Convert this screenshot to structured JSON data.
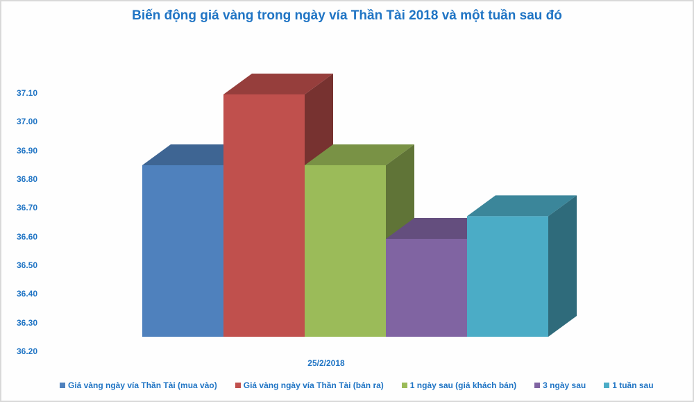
{
  "chart_data": {
    "type": "bar",
    "subtype": "3d-clustered-column",
    "title": "Biến động giá vàng trong ngày vía Thần Tài 2018 và một tuần sau đó",
    "xlabel": "",
    "ylabel": "",
    "categories": [
      "25/2/2018"
    ],
    "series": [
      {
        "name": "Giá vàng ngày vía Thần Tài (mua vào)",
        "values": [
          36.85
        ],
        "color": "#4f81bd"
      },
      {
        "name": "Giá vàng ngày vía Thần Tài (bán ra)",
        "values": [
          37.1
        ],
        "color": "#c0504d"
      },
      {
        "name": "1 ngày sau (giá khách bán)",
        "values": [
          36.85
        ],
        "color": "#9bbb59"
      },
      {
        "name": "3 ngày sau",
        "values": [
          36.59
        ],
        "color": "#8064a2"
      },
      {
        "name": "1 tuần sau",
        "values": [
          36.67
        ],
        "color": "#4bacc6"
      }
    ],
    "yticks": [
      "37.10",
      "37.00",
      "36.90",
      "36.80",
      "36.70",
      "36.60",
      "36.50",
      "36.40",
      "36.30",
      "36.20"
    ],
    "ylim": [
      36.2,
      37.1
    ],
    "grid": false,
    "legend_position": "bottom"
  },
  "ui": {
    "title": "Biến động giá vàng trong ngày vía Thần Tài 2018 và một tuần sau đó",
    "x_category_label": "25/2/2018",
    "text_color": "#1f74c4"
  }
}
